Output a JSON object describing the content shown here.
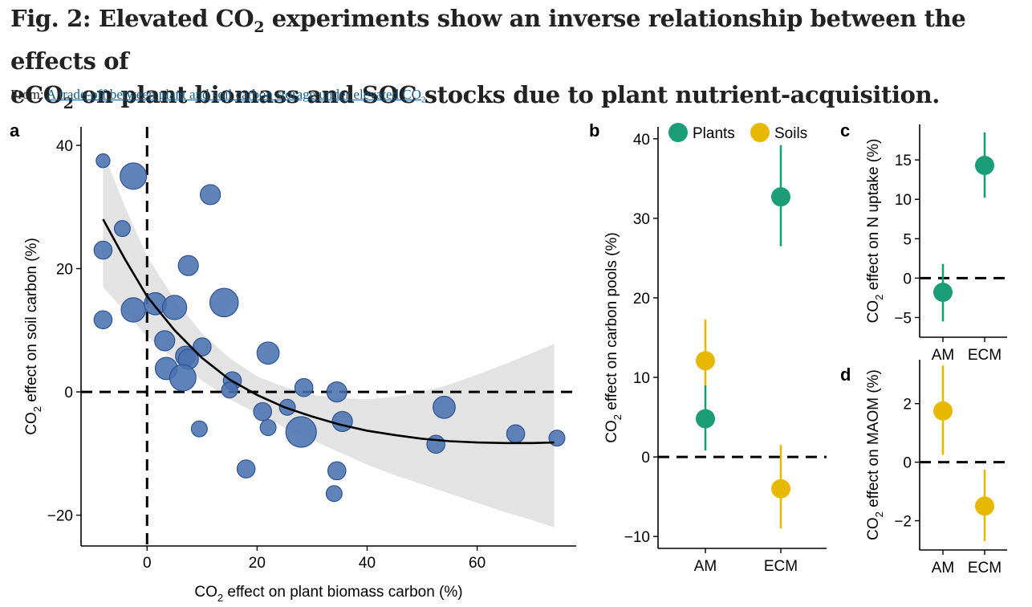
{
  "figure": {
    "title_line1_a": "Fig. 2: Elevated CO",
    "title_line1_sub": "2",
    "title_line1_b": " experiments show an inverse relationship between the effects of",
    "title_line2_a": "eCO",
    "title_line2_sub": "2",
    "title_line2_b": " on plant biomass and SOC stocks due to plant nutrient-acquisition.",
    "from_label": "From: ",
    "source_link_a": "A trade-off between plant and soil carbon storage under elevated CO",
    "source_link_sub": "2"
  },
  "colors": {
    "points_a": "#4a72b0",
    "points_a_edge": "#2f5392",
    "plants": "#1b9e77",
    "soils": "#e6b800",
    "ribbon": "#e3e3e3"
  },
  "chart_data": [
    {
      "panel": "a",
      "type": "scatter",
      "xlabel_a": "CO",
      "xlabel_sub": "2",
      "xlabel_b": " effect on plant biomass carbon (%)",
      "ylabel_a": "CO",
      "ylabel_sub": "2",
      "ylabel_b": " effect on soil carbon (%)",
      "xlim": [
        -12,
        78
      ],
      "ylim": [
        -25,
        43
      ],
      "xticks": [
        0,
        20,
        40,
        60
      ],
      "xtick_labels": [
        "0",
        "20",
        "40",
        "60"
      ],
      "yticks": [
        -20,
        0,
        20,
        40
      ],
      "ytick_labels": [
        "−20",
        "0",
        "20",
        "40"
      ],
      "reference_lines": {
        "x": 0,
        "y": 0
      },
      "points": [
        {
          "x": -8,
          "y": 37.5,
          "w": 1
        },
        {
          "x": -2.5,
          "y": 35,
          "w": 4
        },
        {
          "x": -4.5,
          "y": 26.5,
          "w": 1.5
        },
        {
          "x": -8,
          "y": 23,
          "w": 2
        },
        {
          "x": 11.5,
          "y": 32,
          "w": 2.5
        },
        {
          "x": 7.5,
          "y": 20.5,
          "w": 2.5
        },
        {
          "x": -2.5,
          "y": 13.3,
          "w": 3.5
        },
        {
          "x": -8,
          "y": 11.7,
          "w": 2
        },
        {
          "x": 1.5,
          "y": 14.3,
          "w": 3
        },
        {
          "x": 5,
          "y": 13.7,
          "w": 3.5
        },
        {
          "x": 14,
          "y": 14.5,
          "w": 4.5
        },
        {
          "x": 3.2,
          "y": 8.3,
          "w": 2.5
        },
        {
          "x": 10,
          "y": 7.3,
          "w": 2
        },
        {
          "x": 7,
          "y": 5.8,
          "w": 2.5
        },
        {
          "x": 7.5,
          "y": 5.3,
          "w": 2.5
        },
        {
          "x": 3.5,
          "y": 3.8,
          "w": 3
        },
        {
          "x": 6.5,
          "y": 2.3,
          "w": 4
        },
        {
          "x": 22,
          "y": 6.3,
          "w": 3
        },
        {
          "x": 15.5,
          "y": 1.8,
          "w": 2
        },
        {
          "x": 15,
          "y": 0.3,
          "w": 1.5
        },
        {
          "x": 28.5,
          "y": 0.7,
          "w": 2
        },
        {
          "x": 34.5,
          "y": 0,
          "w": 2.5
        },
        {
          "x": 25.5,
          "y": -2.5,
          "w": 1.5
        },
        {
          "x": 21,
          "y": -3.2,
          "w": 2
        },
        {
          "x": 9.5,
          "y": -6,
          "w": 1.5
        },
        {
          "x": 22,
          "y": -5.8,
          "w": 1.5
        },
        {
          "x": 28,
          "y": -6.5,
          "w": 5
        },
        {
          "x": 35.5,
          "y": -4.8,
          "w": 2.5
        },
        {
          "x": 54,
          "y": -2.5,
          "w": 3
        },
        {
          "x": 52.5,
          "y": -8.5,
          "w": 2
        },
        {
          "x": 67,
          "y": -6.8,
          "w": 2
        },
        {
          "x": 74.5,
          "y": -7.5,
          "w": 1.5
        },
        {
          "x": 18,
          "y": -12.5,
          "w": 2
        },
        {
          "x": 34.5,
          "y": -12.8,
          "w": 2
        },
        {
          "x": 34,
          "y": -16.5,
          "w": 1.5
        }
      ],
      "fit": {
        "x": [
          -8,
          -4,
          0,
          5,
          10,
          15,
          20,
          25,
          30,
          35,
          40,
          45,
          50,
          55,
          60,
          65,
          70,
          74
        ],
        "y": [
          28,
          21.5,
          15.5,
          10,
          5.5,
          2,
          -0.5,
          -2.5,
          -4,
          -5.3,
          -6.3,
          -7,
          -7.6,
          -8,
          -8.2,
          -8.3,
          -8.3,
          -8.2
        ],
        "lower": [
          17,
          13,
          9,
          5.2,
          1.8,
          -1.2,
          -3.5,
          -5.8,
          -7.8,
          -9.8,
          -11.8,
          -13.5,
          -15,
          -16.5,
          -18,
          -19.5,
          -20.8,
          -22
        ],
        "upper": [
          39,
          30,
          22,
          15,
          9.5,
          5.5,
          2.5,
          0.8,
          -0.5,
          -1,
          -1.2,
          -0.8,
          0,
          1.2,
          2.8,
          4.5,
          6.3,
          7.8
        ]
      }
    },
    {
      "panel": "b",
      "type": "pointrange",
      "ylabel_a": "CO",
      "ylabel_sub": "2",
      "ylabel_b": " effect on carbon pools (%)",
      "categories": [
        "AM",
        "ECM"
      ],
      "ylim": [
        -11.5,
        41.5
      ],
      "yticks": [
        -10,
        0,
        10,
        20,
        30,
        40
      ],
      "ytick_labels": [
        "−10",
        "0",
        "10",
        "20",
        "30",
        "40"
      ],
      "legend": [
        "Plants",
        "Soils"
      ],
      "series": [
        {
          "name": "Plants",
          "means": [
            4.8,
            32.7
          ],
          "lower": [
            0.8,
            26.5
          ],
          "upper": [
            9,
            39.2
          ]
        },
        {
          "name": "Soils",
          "means": [
            12.1,
            -4
          ],
          "lower": [
            9,
            -9
          ],
          "upper": [
            17.3,
            1.5
          ]
        }
      ]
    },
    {
      "panel": "c",
      "type": "pointrange",
      "ylabel_a": "CO",
      "ylabel_sub": "2",
      "ylabel_b": " effect on N uptake (%)",
      "categories": [
        "AM",
        "ECM"
      ],
      "ylim": [
        -7.5,
        19.5
      ],
      "yticks": [
        -5,
        0,
        5,
        10,
        15
      ],
      "ytick_labels": [
        "−5",
        "0",
        "5",
        "10",
        "15"
      ],
      "series": [
        {
          "name": "Plants",
          "means": [
            -1.8,
            14.3
          ],
          "lower": [
            -5.5,
            10.2
          ],
          "upper": [
            1.8,
            18.5
          ]
        }
      ]
    },
    {
      "panel": "d",
      "type": "pointrange",
      "ylabel_a": "CO",
      "ylabel_sub": "2",
      "ylabel_b": " effect on MAOM (%)",
      "categories": [
        "AM",
        "ECM"
      ],
      "ylim": [
        -3,
        3.5
      ],
      "yticks": [
        -2,
        0,
        2
      ],
      "ytick_labels": [
        "−2",
        "0",
        "2"
      ],
      "series": [
        {
          "name": "Soils",
          "means": [
            1.75,
            -1.5
          ],
          "lower": [
            0.25,
            -2.7
          ],
          "upper": [
            3.3,
            -0.25
          ]
        }
      ]
    }
  ]
}
